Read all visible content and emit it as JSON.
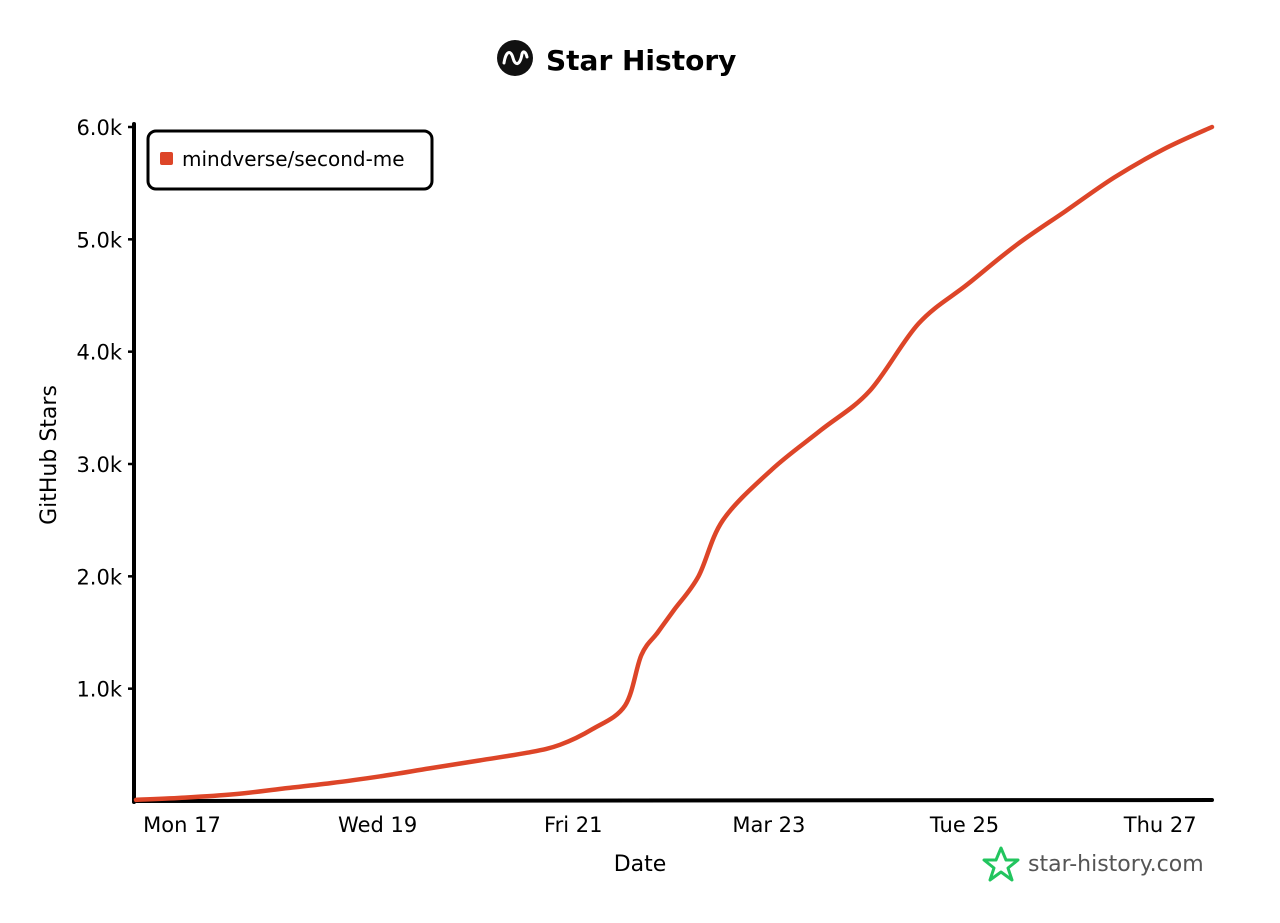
{
  "chart_data": {
    "type": "line",
    "title": "Star History",
    "xlabel": "Date",
    "ylabel": "GitHub Stars",
    "x_ticks": [
      "Mon 17",
      "Wed 19",
      "Fri 21",
      "Mar 23",
      "Tue 25",
      "Thu 27"
    ],
    "y_ticks": [
      "1.0k",
      "2.0k",
      "3.0k",
      "4.0k",
      "5.0k",
      "6.0k"
    ],
    "ylim": [
      0,
      6000
    ],
    "xlim": [
      "2025-03-17",
      "2025-03-28"
    ],
    "legend_position": "top-left",
    "grid": false,
    "series": [
      {
        "name": "mindverse/second-me",
        "color": "#dd4528",
        "points": [
          [
            "2025-03-17",
            10
          ],
          [
            "2025-03-17T12:00",
            30
          ],
          [
            "2025-03-18",
            60
          ],
          [
            "2025-03-18T12:00",
            110
          ],
          [
            "2025-03-19",
            160
          ],
          [
            "2025-03-19T12:00",
            220
          ],
          [
            "2025-03-20",
            290
          ],
          [
            "2025-03-20T12:00",
            360
          ],
          [
            "2025-03-21",
            430
          ],
          [
            "2025-03-21T08:00",
            500
          ],
          [
            "2025-03-21T16:00",
            640
          ],
          [
            "2025-03-22",
            850
          ],
          [
            "2025-03-22T04:00",
            1300
          ],
          [
            "2025-03-22T08:00",
            1500
          ],
          [
            "2025-03-22T12:00",
            1700
          ],
          [
            "2025-03-22T18:00",
            2000
          ],
          [
            "2025-03-23",
            2500
          ],
          [
            "2025-03-23T12:00",
            2950
          ],
          [
            "2025-03-24",
            3300
          ],
          [
            "2025-03-24T12:00",
            3650
          ],
          [
            "2025-03-25",
            4250
          ],
          [
            "2025-03-25T12:00",
            4600
          ],
          [
            "2025-03-26",
            4950
          ],
          [
            "2025-03-26T12:00",
            5250
          ],
          [
            "2025-03-27",
            5550
          ],
          [
            "2025-03-27T12:00",
            5800
          ],
          [
            "2025-03-28",
            6000
          ]
        ]
      }
    ]
  },
  "watermark": {
    "text": "star-history.com",
    "icon": "star-icon",
    "icon_color": "#22c55e"
  },
  "logo": {
    "icon": "star-history-logo-icon"
  }
}
